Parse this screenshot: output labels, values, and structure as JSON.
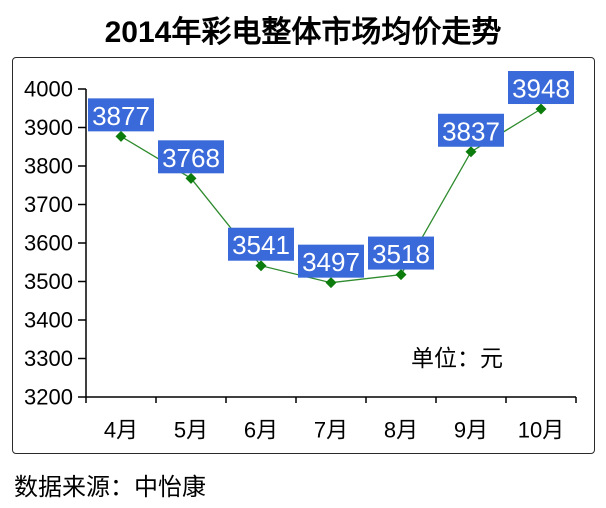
{
  "page": {
    "source": "数据来源：中怡康"
  },
  "chart_data": {
    "type": "line",
    "title": "2014年彩电整体市场均价走势",
    "unit_label": "单位：元",
    "categories": [
      "4月",
      "5月",
      "6月",
      "7月",
      "8月",
      "9月",
      "10月"
    ],
    "series": [
      {
        "name": "彩电整体市场均价",
        "values": [
          3877,
          3768,
          3541,
          3497,
          3518,
          3837,
          3948
        ]
      }
    ],
    "ylim": [
      3200,
      4000
    ],
    "y_ticks": [
      3200,
      3300,
      3400,
      3500,
      3600,
      3700,
      3800,
      3900,
      4000
    ],
    "grid": false,
    "legend": "none",
    "data_labels": "boxed",
    "colors": {
      "line": "#2e8b2e",
      "marker": "#0c7c0c",
      "label_bg": "#3a69d9",
      "label_text": "#ffffff",
      "axis": "#000000",
      "text": "#000000"
    }
  }
}
